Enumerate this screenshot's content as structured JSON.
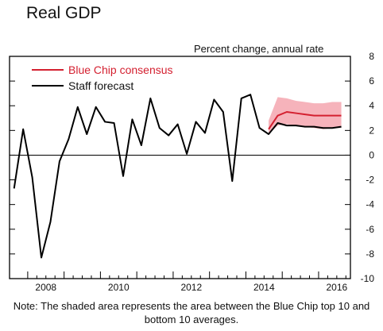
{
  "chart_data": {
    "type": "line",
    "title": "Real GDP",
    "units_label": "Percent change, annual rate",
    "note": "Note:  The shaded area represents the area between the Blue Chip top 10 and bottom 10 averages.",
    "ylim": [
      -10,
      8
    ],
    "yticks": [
      8,
      6,
      4,
      2,
      0,
      -2,
      -4,
      -6,
      -8,
      -10
    ],
    "xlim": [
      2007.5,
      2016.875
    ],
    "xticks": [
      2008,
      2010,
      2012,
      2014,
      2016
    ],
    "xtick_labels": [
      "2008",
      "2010",
      "2012",
      "2014",
      "2016"
    ],
    "legend": {
      "position": "top-left"
    },
    "series": [
      {
        "name": "Blue Chip consensus",
        "color": "#d42030",
        "x": [
          2014.625,
          2014.875,
          2015.125,
          2015.375,
          2015.625,
          2015.875,
          2016.125,
          2016.375,
          2016.625
        ],
        "values": [
          2.1,
          3.2,
          3.5,
          3.4,
          3.3,
          3.2,
          3.2,
          3.2,
          3.2
        ],
        "band_upper": [
          2.8,
          4.7,
          4.6,
          4.4,
          4.3,
          4.2,
          4.2,
          4.3,
          4.3
        ],
        "band_lower": [
          1.7,
          2.4,
          2.5,
          2.4,
          2.3,
          2.2,
          2.1,
          2.2,
          2.2
        ],
        "band_color": "#f6b3bb"
      },
      {
        "name": "Staff forecast",
        "color": "#000000",
        "x": [
          2007.625,
          2007.875,
          2008.125,
          2008.375,
          2008.625,
          2008.875,
          2009.125,
          2009.375,
          2009.625,
          2009.875,
          2010.125,
          2010.375,
          2010.625,
          2010.875,
          2011.125,
          2011.375,
          2011.625,
          2011.875,
          2012.125,
          2012.375,
          2012.625,
          2012.875,
          2013.125,
          2013.375,
          2013.625,
          2013.875,
          2014.125,
          2014.375,
          2014.625,
          2014.875,
          2015.125,
          2015.375,
          2015.625,
          2015.875,
          2016.125,
          2016.375,
          2016.625
        ],
        "values": [
          -2.7,
          2.1,
          -1.8,
          -8.3,
          -5.4,
          -0.5,
          1.3,
          3.9,
          1.7,
          3.9,
          2.7,
          2.6,
          -1.7,
          2.9,
          0.8,
          4.6,
          2.2,
          1.6,
          2.5,
          0.1,
          2.7,
          1.8,
          4.5,
          3.5,
          -2.1,
          4.6,
          4.9,
          2.2,
          1.7,
          2.6,
          2.4,
          2.4,
          2.3,
          2.3,
          2.2,
          2.2,
          2.3
        ]
      }
    ]
  }
}
